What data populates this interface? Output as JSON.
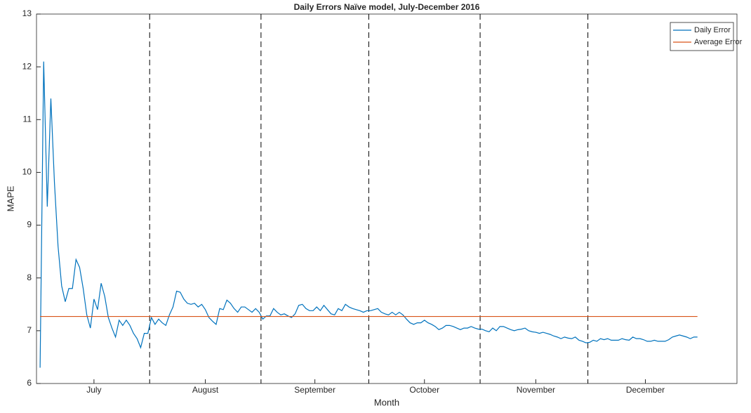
{
  "chart_data": {
    "type": "line",
    "title": "Daily Errors Naïve model, July-December 2016",
    "x_label": "Month",
    "y_label": "MAPE",
    "x": [
      1,
      2,
      3,
      4,
      5,
      6,
      7,
      8,
      9,
      10,
      11,
      12,
      13,
      14,
      15,
      16,
      17,
      18,
      19,
      20,
      21,
      22,
      23,
      24,
      25,
      26,
      27,
      28,
      29,
      30,
      31,
      32,
      33,
      34,
      35,
      36,
      37,
      38,
      39,
      40,
      41,
      42,
      43,
      44,
      45,
      46,
      47,
      48,
      49,
      50,
      51,
      52,
      53,
      54,
      55,
      56,
      57,
      58,
      59,
      60,
      61,
      62,
      63,
      64,
      65,
      66,
      67,
      68,
      69,
      70,
      71,
      72,
      73,
      74,
      75,
      76,
      77,
      78,
      79,
      80,
      81,
      82,
      83,
      84,
      85,
      86,
      87,
      88,
      89,
      90,
      91,
      92,
      93,
      94,
      95,
      96,
      97,
      98,
      99,
      100,
      101,
      102,
      103,
      104,
      105,
      106,
      107,
      108,
      109,
      110,
      111,
      112,
      113,
      114,
      115,
      116,
      117,
      118,
      119,
      120,
      121,
      122,
      123,
      124,
      125,
      126,
      127,
      128,
      129,
      130,
      131,
      132,
      133,
      134,
      135,
      136,
      137,
      138,
      139,
      140,
      141,
      142,
      143,
      144,
      145,
      146,
      147,
      148,
      149,
      150,
      151,
      152,
      153,
      154,
      155,
      156,
      157,
      158,
      159,
      160,
      161,
      162,
      163,
      164,
      165,
      166,
      167,
      168,
      169,
      170,
      171,
      172,
      173,
      174,
      175,
      176,
      177,
      178,
      179,
      180,
      181,
      182,
      183,
      184
    ],
    "series": [
      {
        "name": "Daily Error",
        "color": "#0072bd",
        "values": [
          6.3,
          12.1,
          9.35,
          11.4,
          9.8,
          8.6,
          7.85,
          7.55,
          7.8,
          7.8,
          8.35,
          8.2,
          7.8,
          7.3,
          7.05,
          7.6,
          7.4,
          7.9,
          7.65,
          7.25,
          7.05,
          6.88,
          7.2,
          7.1,
          7.2,
          7.1,
          6.95,
          6.85,
          6.68,
          6.95,
          6.95,
          7.25,
          7.12,
          7.22,
          7.15,
          7.1,
          7.3,
          7.45,
          7.75,
          7.73,
          7.6,
          7.52,
          7.5,
          7.52,
          7.45,
          7.5,
          7.4,
          7.25,
          7.18,
          7.12,
          7.42,
          7.4,
          7.58,
          7.52,
          7.42,
          7.35,
          7.45,
          7.45,
          7.4,
          7.35,
          7.42,
          7.35,
          7.22,
          7.28,
          7.28,
          7.42,
          7.35,
          7.3,
          7.32,
          7.28,
          7.25,
          7.32,
          7.48,
          7.5,
          7.42,
          7.38,
          7.38,
          7.45,
          7.38,
          7.48,
          7.4,
          7.32,
          7.3,
          7.42,
          7.38,
          7.5,
          7.45,
          7.42,
          7.4,
          7.38,
          7.35,
          7.38,
          7.38,
          7.4,
          7.42,
          7.35,
          7.32,
          7.3,
          7.35,
          7.3,
          7.35,
          7.3,
          7.22,
          7.15,
          7.12,
          7.15,
          7.15,
          7.2,
          7.15,
          7.12,
          7.08,
          7.02,
          7.05,
          7.1,
          7.1,
          7.08,
          7.05,
          7.02,
          7.05,
          7.05,
          7.08,
          7.05,
          7.03,
          7.03,
          7.0,
          6.98,
          7.05,
          7.0,
          7.08,
          7.08,
          7.05,
          7.02,
          7.0,
          7.02,
          7.03,
          7.05,
          7.0,
          6.98,
          6.97,
          6.95,
          6.97,
          6.95,
          6.93,
          6.9,
          6.88,
          6.85,
          6.88,
          6.86,
          6.85,
          6.88,
          6.82,
          6.8,
          6.77,
          6.78,
          6.82,
          6.8,
          6.85,
          6.83,
          6.85,
          6.82,
          6.82,
          6.82,
          6.85,
          6.83,
          6.82,
          6.88,
          6.85,
          6.85,
          6.83,
          6.8,
          6.8,
          6.82,
          6.8,
          6.8,
          6.8,
          6.83,
          6.88,
          6.9,
          6.92,
          6.9,
          6.88,
          6.85,
          6.88,
          6.88
        ]
      },
      {
        "name": "Average Error",
        "color": "#d95319",
        "value": 7.27
      }
    ],
    "vlines": [
      31.5,
      62.5,
      92.5,
      123.5,
      153.5
    ],
    "xlim": [
      0,
      195
    ],
    "xticks": [
      {
        "value": 16,
        "label": "July"
      },
      {
        "value": 47,
        "label": "August"
      },
      {
        "value": 77.5,
        "label": "September"
      },
      {
        "value": 108,
        "label": "October"
      },
      {
        "value": 139,
        "label": "November"
      },
      {
        "value": 169.5,
        "label": "December"
      }
    ],
    "ylim": [
      6,
      13
    ],
    "yticks": [
      6,
      7,
      8,
      9,
      10,
      11,
      12,
      13
    ],
    "legend": "top-right"
  }
}
